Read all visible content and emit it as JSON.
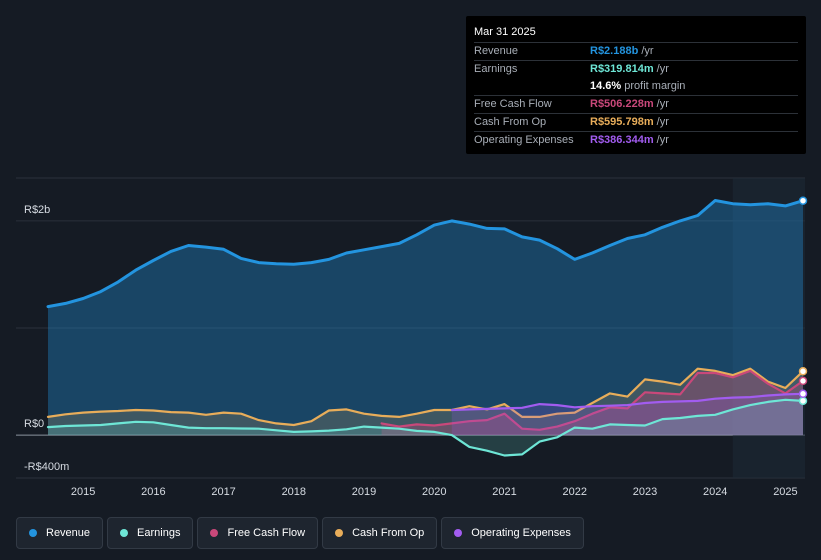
{
  "tooltip": {
    "date": "Mar 31 2025",
    "rows": [
      {
        "label": "Revenue",
        "value": "R$2.188b",
        "unit": "/yr",
        "color": "#2394df"
      },
      {
        "label": "Earnings",
        "value": "R$319.814m",
        "unit": "/yr",
        "color": "#6ee6d6"
      },
      {
        "label": "",
        "value": "14.6%",
        "unit": "profit margin",
        "color": "#ffffff"
      },
      {
        "label": "Free Cash Flow",
        "value": "R$506.228m",
        "unit": "/yr",
        "color": "#c9487a"
      },
      {
        "label": "Cash From Op",
        "value": "R$595.798m",
        "unit": "/yr",
        "color": "#e8ad5a"
      },
      {
        "label": "Operating Expenses",
        "value": "R$386.344m",
        "unit": "/yr",
        "color": "#a25cf0"
      }
    ]
  },
  "legend": [
    {
      "label": "Revenue",
      "color": "#2394df"
    },
    {
      "label": "Earnings",
      "color": "#6ee6d6"
    },
    {
      "label": "Free Cash Flow",
      "color": "#c9487a"
    },
    {
      "label": "Cash From Op",
      "color": "#e8ad5a"
    },
    {
      "label": "Operating Expenses",
      "color": "#a25cf0"
    }
  ],
  "chart_data": {
    "type": "area",
    "title": "",
    "xlabel": "",
    "ylabel": "",
    "unit": "R$ millions per year",
    "xlim": [
      2014.5,
      2025.25
    ],
    "ylim": [
      -400,
      2400
    ],
    "y_tick_labels": [
      {
        "value": 2000,
        "label": "R$2b"
      },
      {
        "value": 0,
        "label": "R$0"
      },
      {
        "value": -400,
        "label": "-R$400m"
      }
    ],
    "x_ticks": [
      "2015",
      "2016",
      "2017",
      "2018",
      "2019",
      "2020",
      "2021",
      "2022",
      "2023",
      "2024",
      "2025"
    ],
    "forecast_region_start": 2024.25,
    "series": [
      {
        "name": "Revenue",
        "color": "#2394df",
        "points": [
          [
            2014.5,
            1200
          ],
          [
            2014.75,
            1230
          ],
          [
            2015,
            1275
          ],
          [
            2015.25,
            1340
          ],
          [
            2015.5,
            1430
          ],
          [
            2015.75,
            1540
          ],
          [
            2016,
            1630
          ],
          [
            2016.25,
            1715
          ],
          [
            2016.5,
            1770
          ],
          [
            2016.75,
            1755
          ],
          [
            2017,
            1735
          ],
          [
            2017.25,
            1650
          ],
          [
            2017.5,
            1610
          ],
          [
            2017.75,
            1600
          ],
          [
            2018,
            1595
          ],
          [
            2018.25,
            1610
          ],
          [
            2018.5,
            1640
          ],
          [
            2018.75,
            1700
          ],
          [
            2019,
            1730
          ],
          [
            2019.25,
            1760
          ],
          [
            2019.5,
            1790
          ],
          [
            2019.75,
            1870
          ],
          [
            2020,
            1960
          ],
          [
            2020.25,
            2000
          ],
          [
            2020.5,
            1970
          ],
          [
            2020.75,
            1930
          ],
          [
            2021,
            1925
          ],
          [
            2021.25,
            1850
          ],
          [
            2021.5,
            1820
          ],
          [
            2021.75,
            1740
          ],
          [
            2022,
            1640
          ],
          [
            2022.25,
            1700
          ],
          [
            2022.5,
            1770
          ],
          [
            2022.75,
            1835
          ],
          [
            2023,
            1870
          ],
          [
            2023.25,
            1940
          ],
          [
            2023.5,
            2000
          ],
          [
            2023.75,
            2050
          ],
          [
            2024,
            2190
          ],
          [
            2024.25,
            2160
          ],
          [
            2024.5,
            2150
          ],
          [
            2024.75,
            2160
          ],
          [
            2025,
            2140
          ],
          [
            2025.25,
            2188
          ]
        ]
      },
      {
        "name": "Earnings",
        "color": "#6ee6d6",
        "points": [
          [
            2014.5,
            75
          ],
          [
            2014.75,
            85
          ],
          [
            2015,
            90
          ],
          [
            2015.25,
            95
          ],
          [
            2015.5,
            110
          ],
          [
            2015.75,
            125
          ],
          [
            2016,
            120
          ],
          [
            2016.25,
            95
          ],
          [
            2016.5,
            70
          ],
          [
            2016.75,
            65
          ],
          [
            2017,
            65
          ],
          [
            2017.25,
            62
          ],
          [
            2017.5,
            60
          ],
          [
            2017.75,
            45
          ],
          [
            2018,
            30
          ],
          [
            2018.25,
            35
          ],
          [
            2018.5,
            42
          ],
          [
            2018.75,
            55
          ],
          [
            2019,
            80
          ],
          [
            2019.25,
            70
          ],
          [
            2019.5,
            60
          ],
          [
            2019.75,
            40
          ],
          [
            2020,
            30
          ],
          [
            2020.25,
            0
          ],
          [
            2020.5,
            -110
          ],
          [
            2020.75,
            -145
          ],
          [
            2021,
            -190
          ],
          [
            2021.25,
            -180
          ],
          [
            2021.5,
            -60
          ],
          [
            2021.75,
            -20
          ],
          [
            2022,
            70
          ],
          [
            2022.25,
            60
          ],
          [
            2022.5,
            100
          ],
          [
            2022.75,
            95
          ],
          [
            2023,
            90
          ],
          [
            2023.25,
            150
          ],
          [
            2023.5,
            160
          ],
          [
            2023.75,
            180
          ],
          [
            2024,
            190
          ],
          [
            2024.25,
            240
          ],
          [
            2024.5,
            280
          ],
          [
            2024.75,
            310
          ],
          [
            2025,
            330
          ],
          [
            2025.25,
            320
          ]
        ]
      },
      {
        "name": "Free Cash Flow",
        "color": "#c9487a",
        "points": [
          [
            2019.25,
            110
          ],
          [
            2019.5,
            80
          ],
          [
            2019.75,
            100
          ],
          [
            2020,
            90
          ],
          [
            2020.25,
            110
          ],
          [
            2020.5,
            130
          ],
          [
            2020.75,
            140
          ],
          [
            2021,
            200
          ],
          [
            2021.25,
            60
          ],
          [
            2021.5,
            50
          ],
          [
            2021.75,
            80
          ],
          [
            2022,
            130
          ],
          [
            2022.25,
            200
          ],
          [
            2022.5,
            260
          ],
          [
            2022.75,
            250
          ],
          [
            2023,
            400
          ],
          [
            2023.25,
            390
          ],
          [
            2023.5,
            380
          ],
          [
            2023.75,
            580
          ],
          [
            2024,
            580
          ],
          [
            2024.25,
            540
          ],
          [
            2024.5,
            600
          ],
          [
            2024.75,
            480
          ],
          [
            2025,
            390
          ],
          [
            2025.25,
            506
          ]
        ]
      },
      {
        "name": "Cash From Op",
        "color": "#e8ad5a",
        "points": [
          [
            2014.5,
            170
          ],
          [
            2014.75,
            195
          ],
          [
            2015,
            210
          ],
          [
            2015.25,
            220
          ],
          [
            2015.5,
            225
          ],
          [
            2015.75,
            235
          ],
          [
            2016,
            230
          ],
          [
            2016.25,
            215
          ],
          [
            2016.5,
            210
          ],
          [
            2016.75,
            190
          ],
          [
            2017,
            210
          ],
          [
            2017.25,
            200
          ],
          [
            2017.5,
            140
          ],
          [
            2017.75,
            110
          ],
          [
            2018,
            95
          ],
          [
            2018.25,
            130
          ],
          [
            2018.5,
            230
          ],
          [
            2018.75,
            240
          ],
          [
            2019,
            200
          ],
          [
            2019.25,
            180
          ],
          [
            2019.5,
            170
          ],
          [
            2019.75,
            200
          ],
          [
            2020,
            235
          ],
          [
            2020.25,
            235
          ],
          [
            2020.5,
            270
          ],
          [
            2020.75,
            240
          ],
          [
            2021,
            290
          ],
          [
            2021.25,
            170
          ],
          [
            2021.5,
            170
          ],
          [
            2021.75,
            200
          ],
          [
            2022,
            210
          ],
          [
            2022.25,
            300
          ],
          [
            2022.5,
            390
          ],
          [
            2022.75,
            360
          ],
          [
            2023,
            520
          ],
          [
            2023.25,
            500
          ],
          [
            2023.5,
            470
          ],
          [
            2023.75,
            620
          ],
          [
            2024,
            600
          ],
          [
            2024.25,
            560
          ],
          [
            2024.5,
            620
          ],
          [
            2024.75,
            500
          ],
          [
            2025,
            440
          ],
          [
            2025.25,
            596
          ]
        ]
      },
      {
        "name": "Operating Expenses",
        "color": "#a25cf0",
        "points": [
          [
            2020.25,
            235
          ],
          [
            2020.5,
            240
          ],
          [
            2020.75,
            245
          ],
          [
            2021,
            250
          ],
          [
            2021.25,
            255
          ],
          [
            2021.5,
            290
          ],
          [
            2021.75,
            280
          ],
          [
            2022,
            260
          ],
          [
            2022.25,
            270
          ],
          [
            2022.5,
            275
          ],
          [
            2022.75,
            280
          ],
          [
            2023,
            300
          ],
          [
            2023.25,
            310
          ],
          [
            2023.5,
            315
          ],
          [
            2023.75,
            320
          ],
          [
            2024,
            340
          ],
          [
            2024.25,
            350
          ],
          [
            2024.5,
            355
          ],
          [
            2024.75,
            370
          ],
          [
            2025,
            380
          ],
          [
            2025.25,
            386
          ]
        ]
      }
    ]
  }
}
